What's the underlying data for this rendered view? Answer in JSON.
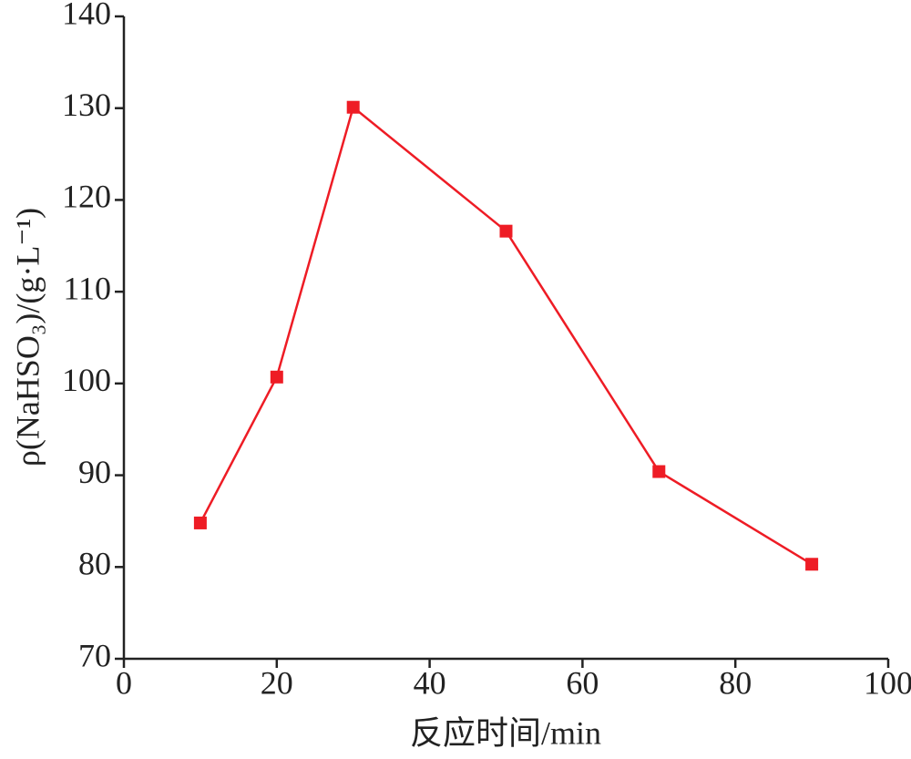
{
  "chart_data": {
    "type": "line",
    "x_label": "反应时间/min",
    "y_label": "ρ(NaHSO₃)/(g·L⁻¹)",
    "x": [
      10,
      20,
      30,
      50,
      70,
      90
    ],
    "series": [
      {
        "color": "#ee1c25",
        "values": [
          84.8,
          100.7,
          130.1,
          116.6,
          90.4,
          80.3
        ]
      }
    ],
    "xlim": [
      0,
      100
    ],
    "xticks": [
      0,
      20,
      40,
      60,
      80,
      100
    ],
    "ylim": [
      70,
      140
    ],
    "yticks": [
      70,
      80,
      90,
      100,
      110,
      120,
      130,
      140
    ],
    "grid": false
  }
}
